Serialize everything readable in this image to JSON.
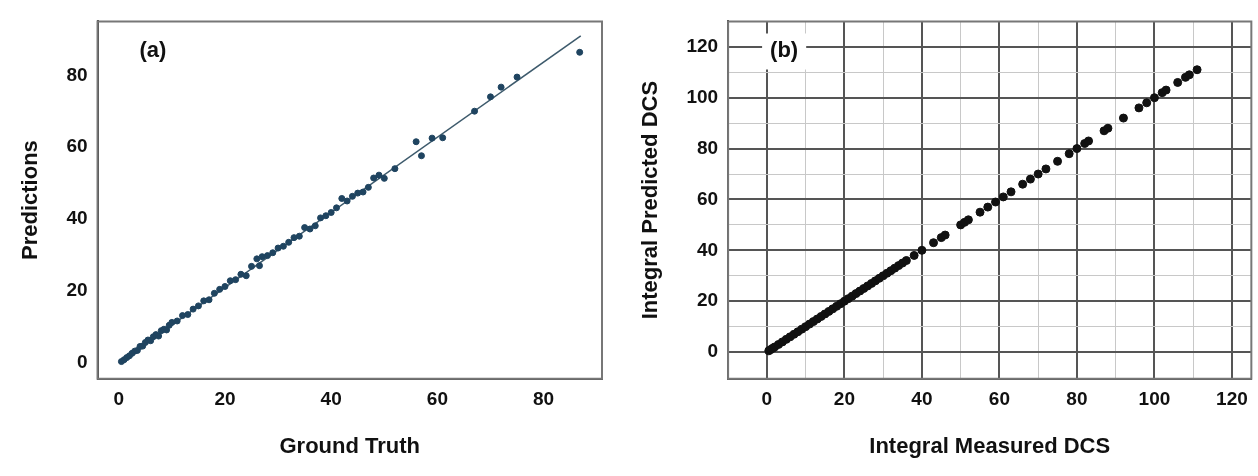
{
  "chart_data": [
    {
      "type": "scatter",
      "xlabel": "Ground Truth",
      "ylabel": "Predictions",
      "annotations": [
        "(a)"
      ],
      "grid": false,
      "xlim": [
        -4,
        91
      ],
      "ylim": [
        -4.5,
        95
      ],
      "xticks": [
        0,
        20,
        40,
        60,
        80
      ],
      "yticks": [
        0,
        20,
        40,
        60,
        80
      ],
      "series": [
        {
          "color": "#1f4460",
          "marker": "circle",
          "x": [
            0.5,
            1,
            1.5,
            2,
            2.5,
            3,
            3.5,
            4,
            4.5,
            5,
            5.5,
            6,
            6.5,
            7,
            7.5,
            8,
            8.5,
            9,
            9.5,
            10,
            11,
            12,
            13,
            14,
            15,
            16,
            17,
            18,
            19,
            20,
            21,
            22,
            23,
            24,
            25,
            26,
            26.5,
            27,
            28,
            29,
            30,
            31,
            32,
            33,
            34,
            35,
            36,
            37,
            38,
            39,
            40,
            41,
            42,
            43,
            44,
            45,
            46,
            47,
            48,
            49,
            50,
            52,
            56,
            57,
            59,
            61,
            67,
            70,
            72,
            75,
            86.8
          ],
          "values": [
            0.3,
            0.8,
            1.4,
            1.9,
            2.6,
            3.2,
            3.4,
            4.5,
            4.6,
            5.6,
            6.3,
            6.1,
            7.2,
            7.8,
            7.4,
            8.9,
            9.3,
            9.1,
            10.4,
            11.2,
            11.6,
            13.1,
            13.4,
            14.9,
            15.8,
            17.2,
            17.5,
            19.3,
            20.4,
            21.2,
            22.8,
            23.1,
            24.6,
            24.2,
            26.8,
            28.9,
            27,
            29.5,
            29.8,
            30.6,
            31.9,
            32.4,
            33.5,
            34.8,
            35.2,
            37.6,
            37.2,
            38.1,
            40.3,
            40.9,
            41.8,
            43.1,
            45.7,
            45,
            46.3,
            47.2,
            47.5,
            48.8,
            51.4,
            52.2,
            51.3,
            54,
            61.5,
            57.6,
            62.5,
            62.6,
            70,
            74,
            76.7,
            79.5,
            86.4
          ]
        },
        {
          "type": "line",
          "marker": "none",
          "color": "#3d5a6c",
          "x": [
            0,
            87
          ],
          "values": [
            0,
            91
          ]
        }
      ]
    },
    {
      "type": "scatter",
      "xlabel": "Integral Measured DCS",
      "ylabel": "Integral Predicted DCS",
      "annotations": [
        "(b)"
      ],
      "marker": "circle",
      "grid": true,
      "xlim": [
        -10,
        125
      ],
      "ylim": [
        -10.5,
        130
      ],
      "xticks": [
        0,
        {
          "value": 10,
          "label": null
        },
        20,
        {
          "value": 30,
          "label": null
        },
        40,
        {
          "value": 50,
          "label": null
        },
        60,
        {
          "value": 70,
          "label": null
        },
        80,
        {
          "value": 90,
          "label": null
        },
        100,
        {
          "value": 110,
          "label": null
        },
        120
      ],
      "yticks": [
        0,
        {
          "value": 10,
          "label": null
        },
        20,
        {
          "value": 30,
          "label": null
        },
        40,
        {
          "value": 50,
          "label": null
        },
        60,
        {
          "value": 70,
          "label": null
        },
        80,
        {
          "value": 90,
          "label": null
        },
        100,
        {
          "value": 110,
          "label": null
        },
        120
      ],
      "series": [
        {
          "color": "#111111",
          "x": [
            0.5,
            1,
            1.5,
            2,
            3,
            4,
            5,
            6,
            7,
            8,
            9,
            10,
            11,
            12,
            13,
            14,
            15,
            16,
            17,
            18,
            19,
            20,
            21,
            22,
            23,
            24,
            25,
            26,
            27,
            28,
            29,
            30,
            31,
            32,
            33,
            34,
            35,
            36,
            38,
            40,
            43,
            45,
            46,
            50,
            51,
            52,
            55,
            57,
            59,
            61,
            63,
            66,
            68,
            70,
            72,
            75,
            78,
            80,
            82,
            83,
            87,
            88,
            92,
            96,
            98,
            100,
            102,
            103,
            106,
            108,
            109,
            111
          ],
          "values": [
            0.5,
            1,
            1.5,
            2,
            3,
            4,
            5,
            6,
            7,
            8,
            9,
            10,
            11,
            12,
            13,
            14,
            15,
            16,
            17,
            18,
            19,
            20,
            21,
            22,
            23,
            24,
            25,
            26,
            27,
            28,
            29,
            30,
            31,
            32,
            33,
            34,
            35,
            36,
            38,
            40,
            43,
            45,
            46,
            50,
            51,
            52,
            55,
            57,
            59,
            61,
            63,
            66,
            68,
            70,
            72,
            75,
            78,
            80,
            82,
            83,
            87,
            88,
            92,
            96,
            98,
            100,
            102,
            103,
            106,
            108,
            109,
            111
          ]
        }
      ]
    }
  ]
}
